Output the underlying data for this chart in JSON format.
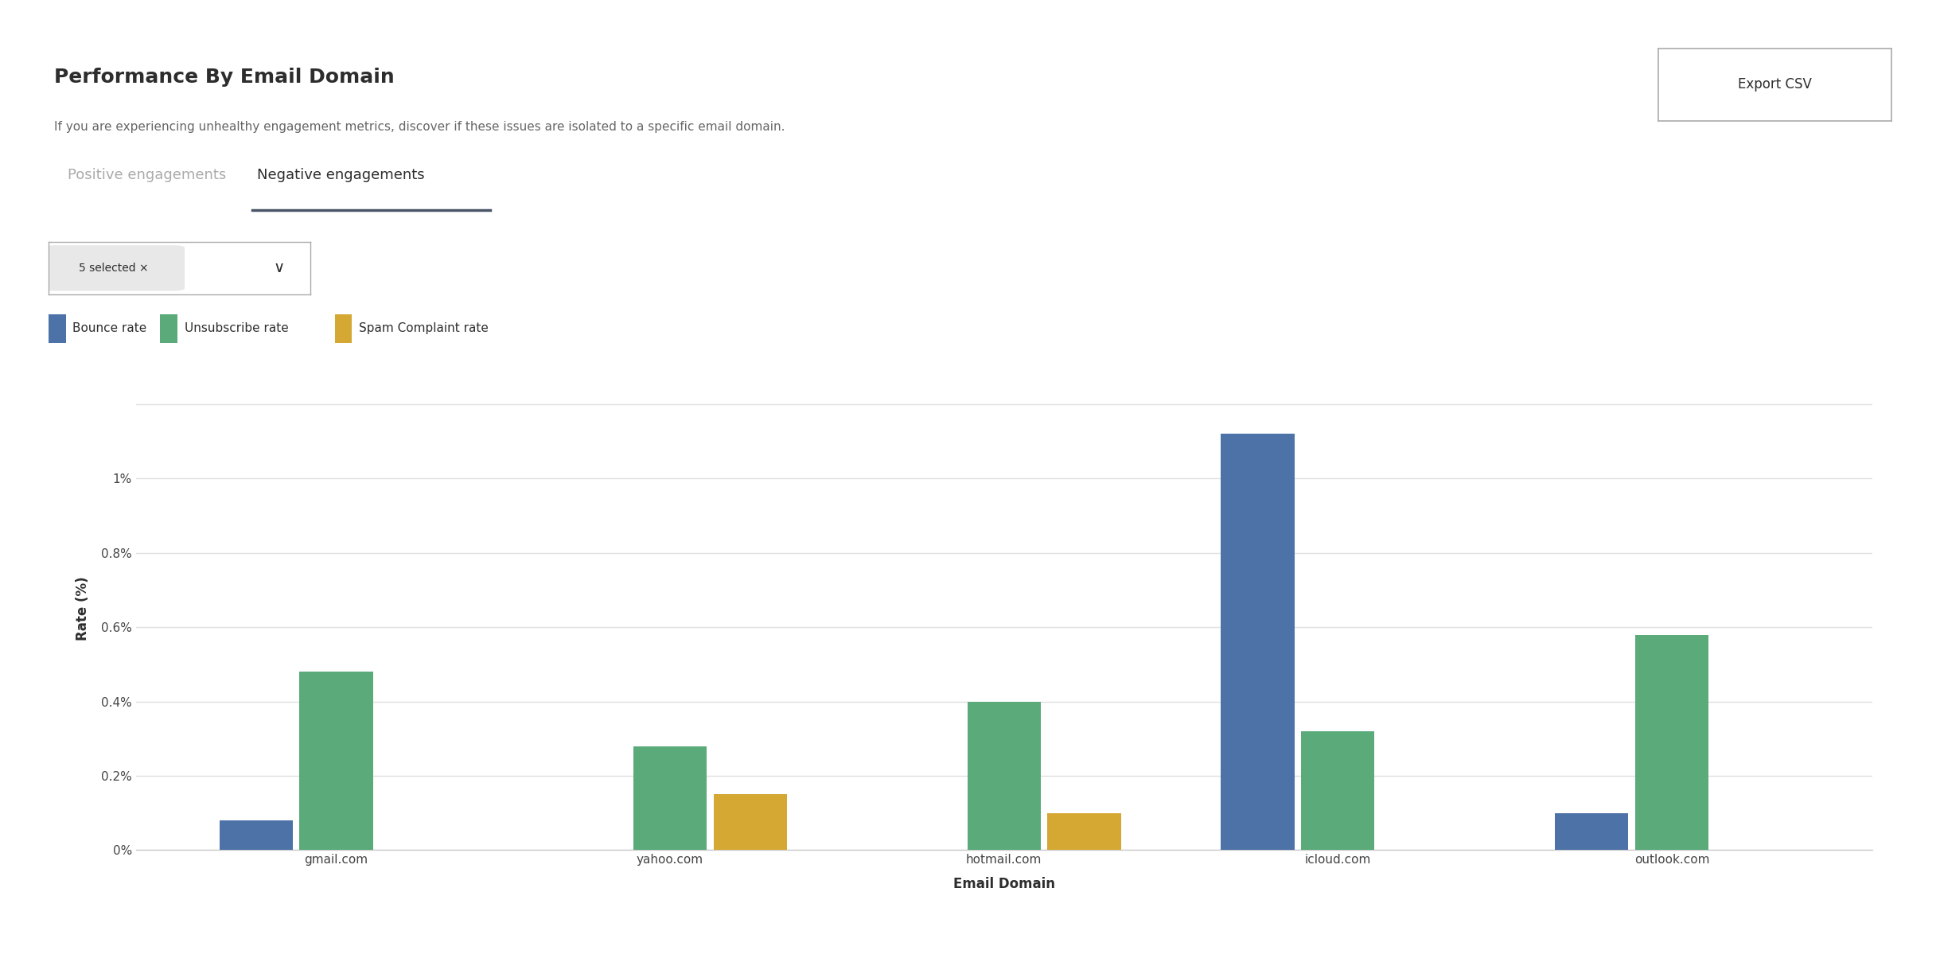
{
  "title": "Performance By Email Domain",
  "subtitle": "If you are experiencing unhealthy engagement metrics, discover if these issues are isolated to a specific email domain.",
  "tab_inactive": "Positive engagements",
  "tab_active": "Negative engagements",
  "dropdown_label": "5 selected ×",
  "xlabel": "Email Domain",
  "ylabel": "Rate (%)",
  "categories": [
    "gmail.com",
    "yahoo.com",
    "hotmail.com",
    "icloud.com",
    "outlook.com"
  ],
  "bounce_rate": [
    0.0008,
    0.0,
    0.0,
    0.0112,
    0.001
  ],
  "unsubscribe_rate": [
    0.0048,
    0.0028,
    0.004,
    0.0032,
    0.0058
  ],
  "spam_rate": [
    0.0,
    0.0015,
    0.001,
    0.0,
    0.0
  ],
  "bounce_color": "#4d72a8",
  "unsubscribe_color": "#5aaa7a",
  "spam_color": "#d4a832",
  "legend_labels": [
    "Bounce rate",
    "Unsubscribe rate",
    "Spam Complaint rate"
  ],
  "yticks": [
    0.0,
    0.002,
    0.004,
    0.006,
    0.008,
    0.01,
    0.012
  ],
  "ytick_labels": [
    "0%",
    "0.2%",
    "0.4%",
    "0.6%",
    "0.8%",
    "1%",
    ""
  ],
  "ylim": [
    0,
    0.013
  ],
  "background_color": "#ffffff",
  "grid_color": "#e0e0e0",
  "title_fontsize": 18,
  "subtitle_fontsize": 11,
  "axis_label_fontsize": 12,
  "tick_fontsize": 11,
  "legend_fontsize": 11
}
